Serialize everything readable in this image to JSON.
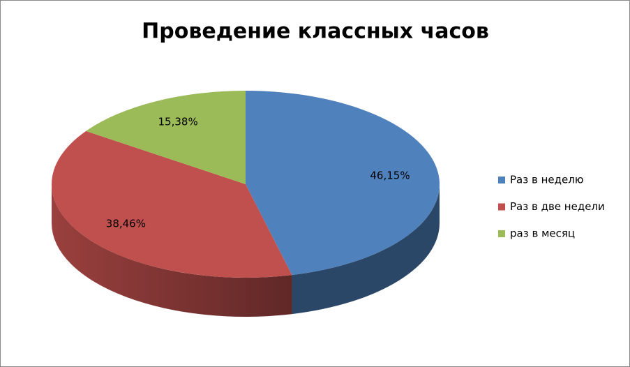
{
  "chart_data": {
    "type": "pie",
    "title": "Проведение классных часов",
    "categories": [
      "Раз в неделю",
      "Раз в две недели",
      "раз в месяц"
    ],
    "values": [
      46.15,
      38.46,
      15.38
    ],
    "value_labels": [
      "46,15%",
      "38,46%",
      "15,38%"
    ],
    "colors": [
      "#4f81bd",
      "#c0504d",
      "#9bbb59"
    ],
    "legend": "right"
  }
}
